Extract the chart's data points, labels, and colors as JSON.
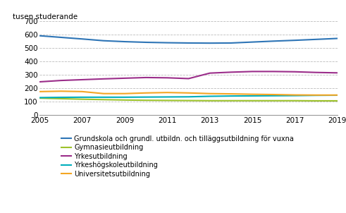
{
  "years": [
    2005,
    2006,
    2007,
    2008,
    2009,
    2010,
    2011,
    2012,
    2013,
    2014,
    2015,
    2016,
    2017,
    2018,
    2019
  ],
  "series": [
    {
      "label": "Grundskola och grundl. utbildn. och tilläggsutbildning för vuxna",
      "values": [
        592,
        580,
        568,
        555,
        548,
        543,
        540,
        538,
        537,
        538,
        545,
        552,
        558,
        565,
        572
      ],
      "color": "#2E75B6"
    },
    {
      "label": "Gymnasieutbildning",
      "values": [
        126,
        122,
        118,
        115,
        112,
        110,
        109,
        108,
        107,
        107,
        107,
        107,
        107,
        106,
        106
      ],
      "color": "#9DC22C"
    },
    {
      "label": "Yrkesutbildning",
      "values": [
        248,
        258,
        264,
        270,
        275,
        280,
        278,
        272,
        313,
        320,
        325,
        325,
        323,
        318,
        315
      ],
      "color": "#9B2E8A"
    },
    {
      "label": "Yrkeshögskoleutbildning",
      "values": [
        130,
        132,
        133,
        133,
        133,
        134,
        135,
        136,
        140,
        142,
        143,
        144,
        145,
        147,
        148
      ],
      "color": "#00AEBC"
    },
    {
      "label": "Universitetsutbildning",
      "values": [
        175,
        178,
        175,
        160,
        160,
        165,
        168,
        165,
        160,
        158,
        155,
        153,
        150,
        149,
        149
      ],
      "color": "#F4A623"
    }
  ],
  "ylabel": "tusen studerande",
  "ylim": [
    0,
    700
  ],
  "yticks": [
    0,
    100,
    200,
    300,
    400,
    500,
    600,
    700
  ],
  "xticks": [
    2005,
    2007,
    2009,
    2011,
    2013,
    2015,
    2017,
    2019
  ],
  "grid_color": "#BBBBBB",
  "background_color": "#FFFFFF",
  "line_width": 1.5,
  "legend_fontsize": 7.0,
  "ylabel_fontsize": 7.5,
  "tick_fontsize": 7.5
}
